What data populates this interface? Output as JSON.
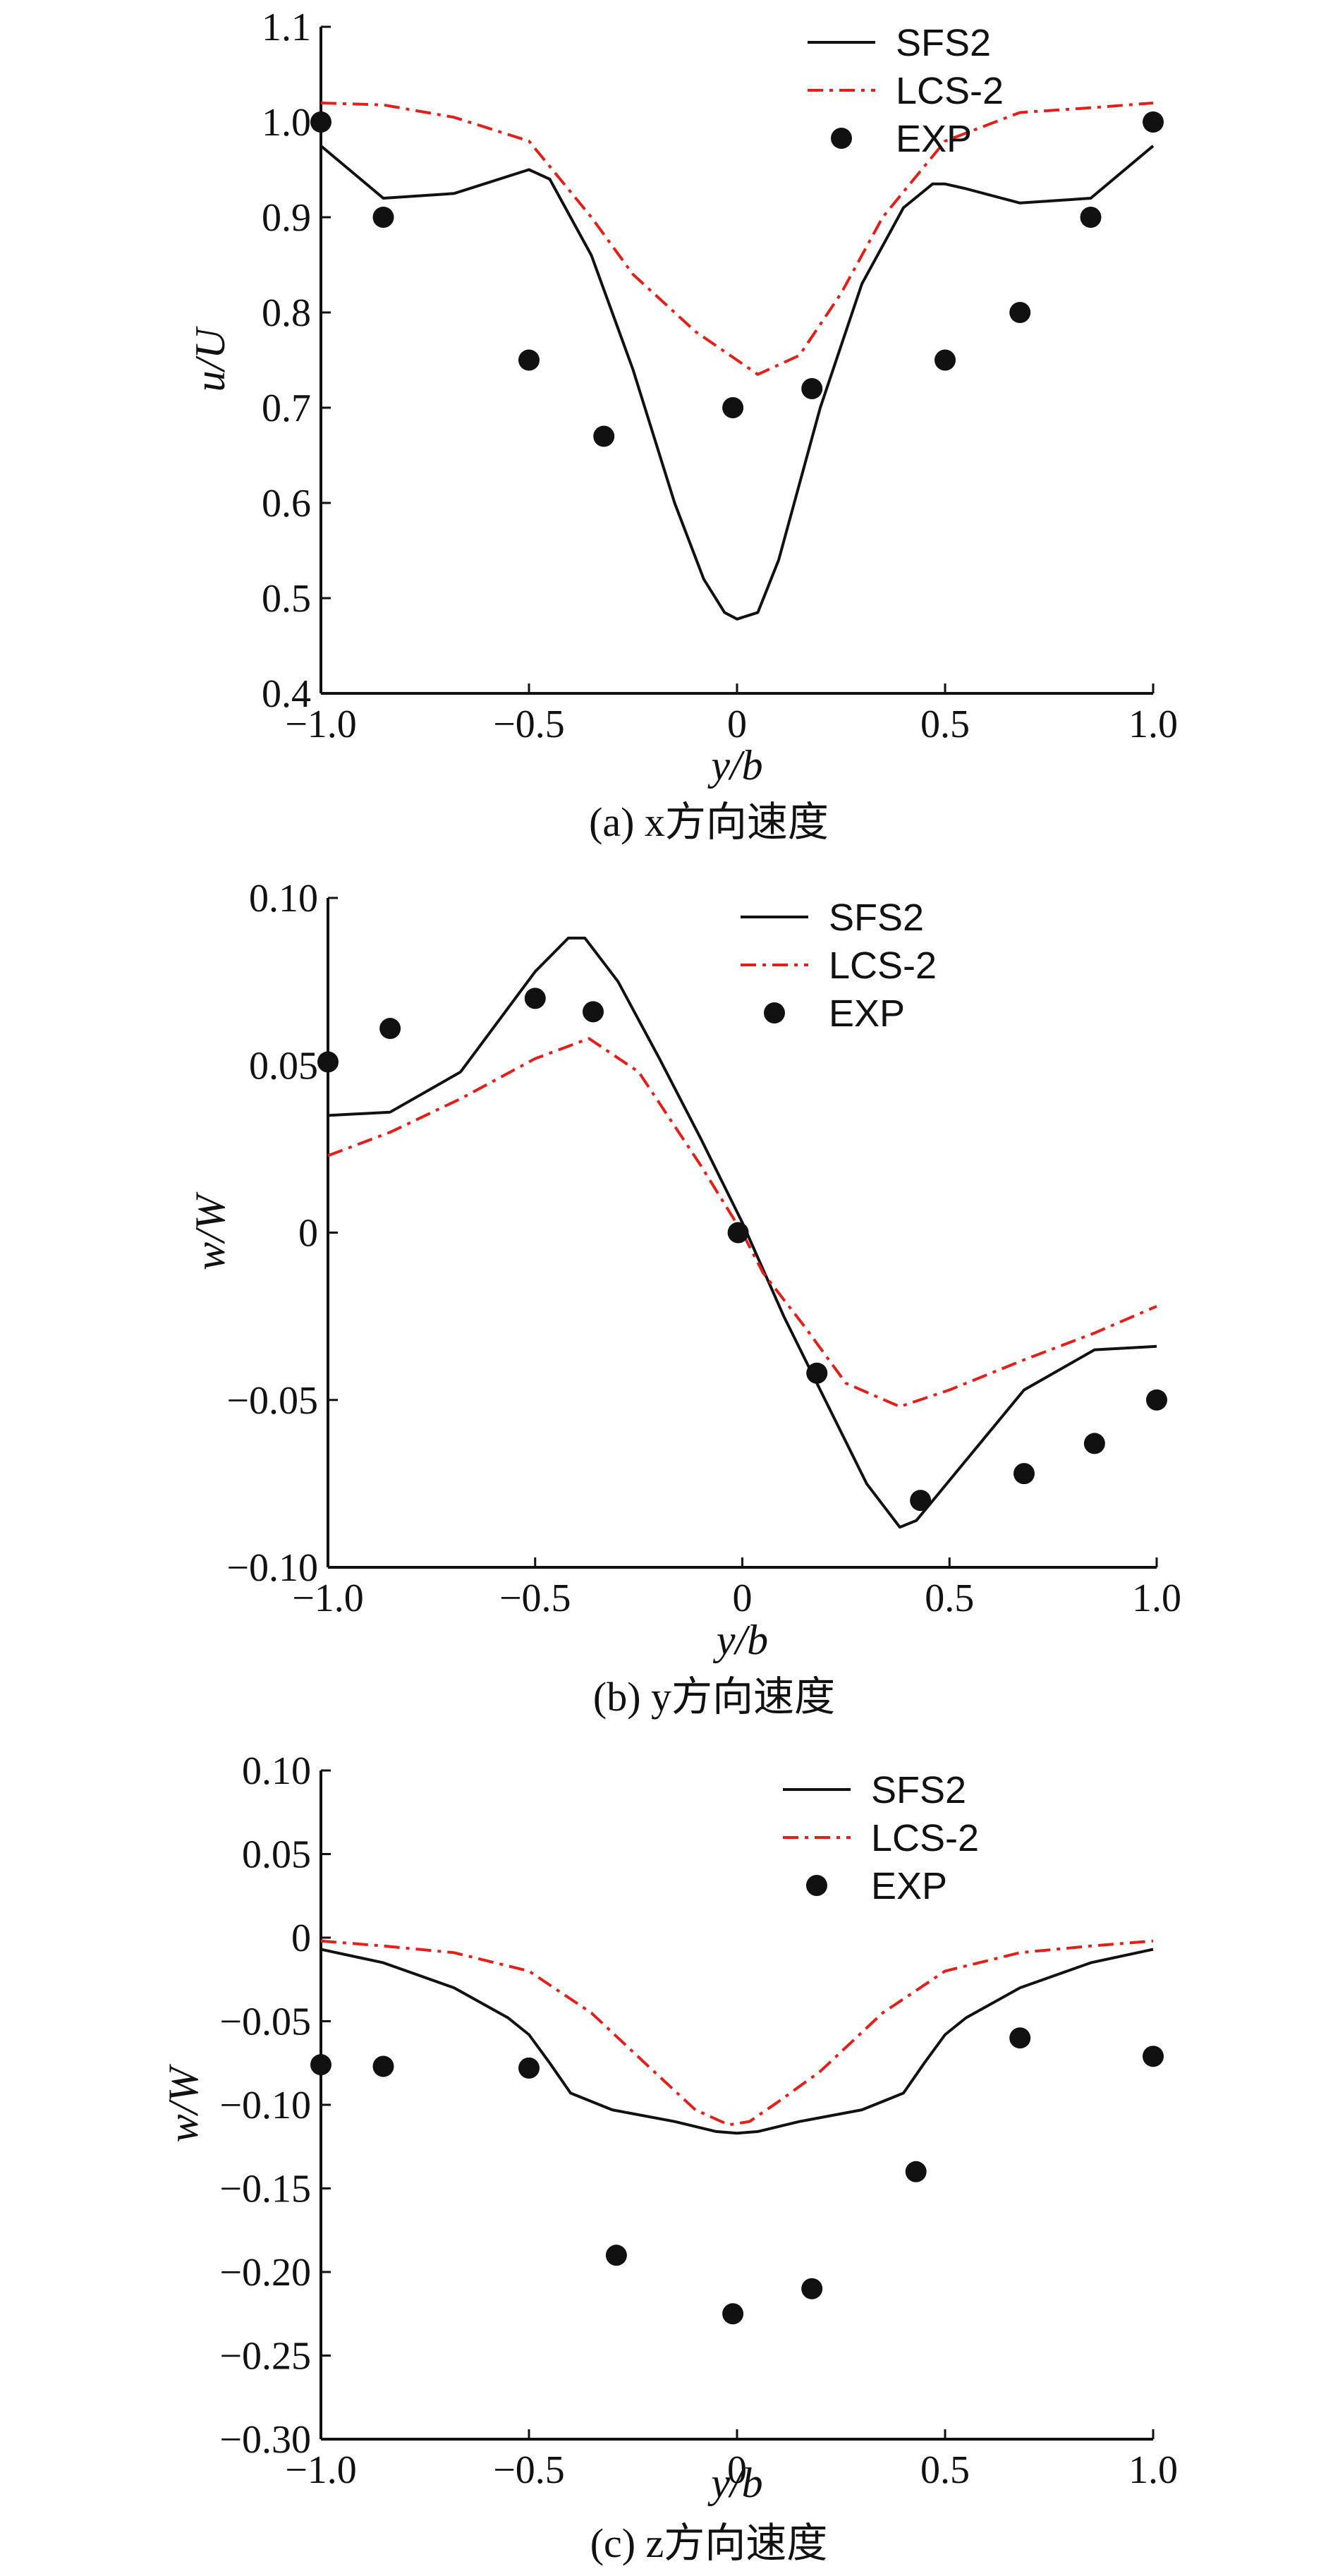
{
  "chart_data": [
    {
      "type": "line",
      "caption": "(a) x方向速度",
      "xlabel": "y/b",
      "ylabel": "u/U",
      "xlim": [
        -1.0,
        1.0
      ],
      "ylim": [
        0.4,
        1.1
      ],
      "xticks": [
        "−1.0",
        "−0.5",
        "0",
        "0.5",
        "1.0"
      ],
      "xtick_values": [
        -1.0,
        -0.5,
        0,
        0.5,
        1.0
      ],
      "yticks": [
        "0.4",
        "0.5",
        "0.6",
        "0.7",
        "0.8",
        "0.9",
        "1.0",
        "1.1"
      ],
      "ytick_values": [
        0.4,
        0.5,
        0.6,
        0.7,
        0.8,
        0.9,
        1.0,
        1.1
      ],
      "legend_position": "top-right",
      "series": [
        {
          "name": "SFS2",
          "style": "solid",
          "color": "#111111",
          "x": [
            -1.0,
            -0.85,
            -0.68,
            -0.5,
            -0.45,
            -0.35,
            -0.25,
            -0.15,
            -0.08,
            -0.03,
            0.0,
            0.05,
            0.1,
            0.2,
            0.3,
            0.4,
            0.47,
            0.5,
            0.55,
            0.68,
            0.85,
            1.0
          ],
          "y": [
            0.975,
            0.92,
            0.925,
            0.95,
            0.94,
            0.86,
            0.74,
            0.6,
            0.52,
            0.485,
            0.478,
            0.485,
            0.54,
            0.7,
            0.83,
            0.91,
            0.935,
            0.935,
            0.93,
            0.915,
            0.92,
            0.975
          ]
        },
        {
          "name": "LCS-2",
          "style": "dashdot",
          "color": "#e0201b",
          "x": [
            -1.0,
            -0.85,
            -0.68,
            -0.5,
            -0.35,
            -0.25,
            -0.1,
            0.0,
            0.05,
            0.15,
            0.25,
            0.35,
            0.5,
            0.68,
            0.85,
            1.0
          ],
          "y": [
            1.02,
            1.018,
            1.005,
            0.98,
            0.9,
            0.84,
            0.78,
            0.75,
            0.735,
            0.755,
            0.82,
            0.9,
            0.98,
            1.01,
            1.015,
            1.02
          ]
        },
        {
          "name": "EXP",
          "style": "markers",
          "color": "#111111",
          "x": [
            -1.0,
            -0.85,
            -0.5,
            -0.32,
            -0.01,
            0.18,
            0.5,
            0.68,
            0.85,
            1.0
          ],
          "y": [
            1.0,
            0.9,
            0.75,
            0.67,
            0.7,
            0.72,
            0.75,
            0.8,
            0.9,
            1.0
          ]
        }
      ]
    },
    {
      "type": "line",
      "caption": "(b) y方向速度",
      "xlabel": "y/b",
      "ylabel": "w/W",
      "xlim": [
        -1.0,
        1.0
      ],
      "ylim": [
        -0.1,
        0.1
      ],
      "xticks": [
        "−1.0",
        "−0.5",
        "0",
        "0.5",
        "1.0"
      ],
      "xtick_values": [
        -1.0,
        -0.5,
        0,
        0.5,
        1.0
      ],
      "yticks": [
        "−0.10",
        "−0.05",
        "0",
        "0.05",
        "0.10"
      ],
      "ytick_values": [
        -0.1,
        -0.05,
        0,
        0.05,
        0.1
      ],
      "legend_position": "top-right",
      "series": [
        {
          "name": "SFS2",
          "style": "solid",
          "color": "#111111",
          "x": [
            -1.0,
            -0.85,
            -0.68,
            -0.5,
            -0.42,
            -0.38,
            -0.3,
            -0.2,
            -0.1,
            0.0,
            0.1,
            0.2,
            0.3,
            0.38,
            0.42,
            0.5,
            0.68,
            0.85,
            1.0
          ],
          "y": [
            0.035,
            0.036,
            0.048,
            0.078,
            0.088,
            0.088,
            0.075,
            0.052,
            0.028,
            0.003,
            -0.025,
            -0.05,
            -0.075,
            -0.088,
            -0.086,
            -0.074,
            -0.047,
            -0.035,
            -0.034
          ]
        },
        {
          "name": "LCS-2",
          "style": "dashdot",
          "color": "#e0201b",
          "x": [
            -1.0,
            -0.85,
            -0.68,
            -0.5,
            -0.37,
            -0.25,
            -0.1,
            0.0,
            0.05,
            0.15,
            0.25,
            0.38,
            0.5,
            0.68,
            0.85,
            1.0
          ],
          "y": [
            0.023,
            0.03,
            0.04,
            0.052,
            0.058,
            0.048,
            0.02,
            0.0,
            -0.012,
            -0.028,
            -0.045,
            -0.052,
            -0.047,
            -0.038,
            -0.03,
            -0.022
          ]
        },
        {
          "name": "EXP",
          "style": "markers",
          "color": "#111111",
          "x": [
            -1.0,
            -0.85,
            -0.5,
            -0.36,
            -0.01,
            0.18,
            0.43,
            0.68,
            0.85,
            1.0
          ],
          "y": [
            0.051,
            0.061,
            0.07,
            0.066,
            0.0,
            -0.042,
            -0.08,
            -0.072,
            -0.063,
            -0.05
          ]
        }
      ]
    },
    {
      "type": "line",
      "caption": "(c) z方向速度",
      "xlabel": "y/b",
      "ylabel": "w/W",
      "xlim": [
        -1.0,
        1.0
      ],
      "ylim": [
        -0.3,
        0.1
      ],
      "xticks": [
        "−1.0",
        "−0.5",
        "0",
        "0.5",
        "1.0"
      ],
      "xtick_values": [
        -1.0,
        -0.5,
        0,
        0.5,
        1.0
      ],
      "yticks": [
        "−0.30",
        "−0.25",
        "−0.20",
        "−0.15",
        "−0.10",
        "−0.05",
        "0",
        "0.05",
        "0.10"
      ],
      "ytick_values": [
        -0.3,
        -0.25,
        -0.2,
        -0.15,
        -0.1,
        -0.05,
        0,
        0.05,
        0.1
      ],
      "legend_position": "top-right",
      "series": [
        {
          "name": "SFS2",
          "style": "solid",
          "color": "#111111",
          "x": [
            -1.0,
            -0.85,
            -0.68,
            -0.55,
            -0.5,
            -0.45,
            -0.4,
            -0.3,
            -0.15,
            -0.05,
            0.0,
            0.05,
            0.15,
            0.3,
            0.4,
            0.45,
            0.5,
            0.55,
            0.68,
            0.85,
            1.0
          ],
          "y": [
            -0.007,
            -0.015,
            -0.03,
            -0.048,
            -0.058,
            -0.075,
            -0.093,
            -0.103,
            -0.11,
            -0.116,
            -0.117,
            -0.116,
            -0.11,
            -0.103,
            -0.093,
            -0.075,
            -0.058,
            -0.048,
            -0.03,
            -0.015,
            -0.007
          ]
        },
        {
          "name": "LCS-2",
          "style": "dashdot",
          "color": "#e0201b",
          "x": [
            -1.0,
            -0.85,
            -0.68,
            -0.5,
            -0.35,
            -0.2,
            -0.1,
            -0.02,
            0.03,
            0.1,
            0.2,
            0.35,
            0.5,
            0.68,
            0.85,
            1.0
          ],
          "y": [
            -0.002,
            -0.005,
            -0.009,
            -0.02,
            -0.045,
            -0.08,
            -0.103,
            -0.112,
            -0.11,
            -0.098,
            -0.08,
            -0.045,
            -0.02,
            -0.009,
            -0.005,
            -0.002
          ]
        },
        {
          "name": "EXP",
          "style": "markers",
          "color": "#111111",
          "x": [
            -1.0,
            -0.85,
            -0.5,
            -0.29,
            -0.01,
            0.18,
            0.43,
            0.68,
            1.0
          ],
          "y": [
            -0.076,
            -0.077,
            -0.078,
            -0.19,
            -0.225,
            -0.21,
            -0.14,
            -0.06,
            -0.071
          ]
        }
      ]
    }
  ]
}
